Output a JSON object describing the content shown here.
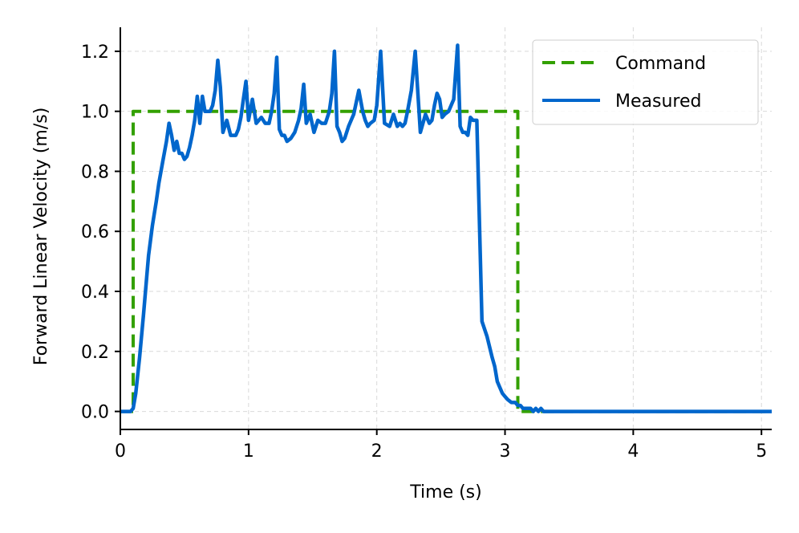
{
  "chart_data": {
    "type": "line",
    "xlabel": "Time (s)",
    "ylabel": "Forward Linear Velocity (m/s)",
    "xlim": [
      0,
      5.08
    ],
    "ylim": [
      -0.06,
      1.28
    ],
    "xticks": [
      0,
      1,
      2,
      3,
      4,
      5
    ],
    "yticks": [
      0.0,
      0.2,
      0.4,
      0.6,
      0.8,
      1.0,
      1.2
    ],
    "grid": true,
    "legend_position": "top-right",
    "series": [
      {
        "name": "Command",
        "style": "dashed",
        "color": "#33a000",
        "x": [
          0.0,
          0.1,
          0.1,
          3.1,
          3.1,
          5.08
        ],
        "y": [
          0.0,
          0.0,
          1.0,
          1.0,
          0.0,
          0.0
        ]
      },
      {
        "name": "Measured",
        "style": "solid",
        "color": "#0066cc",
        "x": [
          0.0,
          0.08,
          0.1,
          0.12,
          0.15,
          0.18,
          0.2,
          0.22,
          0.25,
          0.28,
          0.3,
          0.33,
          0.36,
          0.38,
          0.4,
          0.42,
          0.44,
          0.46,
          0.48,
          0.5,
          0.52,
          0.54,
          0.56,
          0.58,
          0.6,
          0.62,
          0.64,
          0.66,
          0.68,
          0.7,
          0.72,
          0.74,
          0.76,
          0.78,
          0.8,
          0.83,
          0.86,
          0.88,
          0.9,
          0.92,
          0.94,
          0.96,
          0.98,
          1.0,
          1.03,
          1.06,
          1.1,
          1.13,
          1.16,
          1.18,
          1.2,
          1.22,
          1.24,
          1.26,
          1.28,
          1.3,
          1.33,
          1.36,
          1.39,
          1.41,
          1.43,
          1.45,
          1.48,
          1.51,
          1.54,
          1.57,
          1.6,
          1.63,
          1.65,
          1.67,
          1.69,
          1.71,
          1.73,
          1.75,
          1.78,
          1.82,
          1.86,
          1.89,
          1.91,
          1.93,
          1.95,
          1.98,
          2.0,
          2.03,
          2.06,
          2.1,
          2.13,
          2.16,
          2.18,
          2.2,
          2.22,
          2.24,
          2.27,
          2.3,
          2.34,
          2.38,
          2.41,
          2.43,
          2.45,
          2.47,
          2.49,
          2.51,
          2.53,
          2.56,
          2.6,
          2.63,
          2.65,
          2.67,
          2.69,
          2.71,
          2.73,
          2.75,
          2.78,
          2.82,
          2.86,
          2.9,
          2.92,
          2.94,
          2.96,
          2.98,
          3.0,
          3.02,
          3.05,
          3.08,
          3.1,
          3.12,
          3.14,
          3.16,
          3.18,
          3.2,
          3.22,
          3.24,
          3.26,
          3.28,
          3.3,
          3.33,
          3.36,
          3.4,
          3.44,
          3.48,
          3.52,
          3.56,
          3.6,
          3.65,
          3.7,
          3.75,
          3.8,
          3.9,
          4.0,
          4.1,
          4.2,
          4.3,
          4.4,
          4.5,
          4.6,
          4.7,
          4.8,
          4.9,
          5.0,
          5.08
        ],
        "y": [
          0.0,
          0.0,
          0.01,
          0.06,
          0.18,
          0.32,
          0.42,
          0.52,
          0.62,
          0.7,
          0.76,
          0.83,
          0.9,
          0.96,
          0.92,
          0.87,
          0.9,
          0.86,
          0.86,
          0.84,
          0.85,
          0.88,
          0.92,
          0.97,
          1.05,
          0.96,
          1.05,
          1.0,
          1.0,
          1.0,
          1.02,
          1.07,
          1.17,
          1.08,
          0.93,
          0.97,
          0.92,
          0.92,
          0.92,
          0.94,
          0.98,
          1.04,
          1.1,
          0.97,
          1.04,
          0.96,
          0.98,
          0.96,
          0.96,
          1.0,
          1.06,
          1.18,
          0.94,
          0.92,
          0.92,
          0.9,
          0.91,
          0.93,
          0.97,
          1.01,
          1.09,
          0.96,
          0.99,
          0.93,
          0.97,
          0.96,
          0.96,
          1.0,
          1.06,
          1.2,
          0.95,
          0.93,
          0.9,
          0.91,
          0.95,
          0.99,
          1.07,
          1.0,
          0.97,
          0.95,
          0.96,
          0.97,
          1.02,
          1.2,
          0.96,
          0.95,
          0.99,
          0.95,
          0.96,
          0.95,
          0.96,
          1.0,
          1.07,
          1.2,
          0.93,
          0.99,
          0.96,
          0.97,
          1.02,
          1.06,
          1.04,
          0.98,
          0.99,
          1.0,
          1.04,
          1.22,
          0.95,
          0.93,
          0.93,
          0.92,
          0.98,
          0.97,
          0.97,
          0.3,
          0.25,
          0.18,
          0.15,
          0.1,
          0.08,
          0.06,
          0.05,
          0.04,
          0.03,
          0.03,
          0.02,
          0.02,
          0.01,
          0.01,
          0.01,
          0.01,
          0.0,
          0.01,
          0.0,
          0.01,
          0.0,
          0.0,
          0.0,
          0.0,
          0.0,
          0.0,
          0.0,
          0.0,
          0.0,
          0.0,
          0.0,
          0.0,
          0.0,
          0.0,
          0.0,
          0.0,
          0.0,
          0.0,
          0.0,
          0.0,
          0.0,
          0.0,
          0.0,
          0.0,
          0.0,
          0.0
        ]
      }
    ]
  }
}
